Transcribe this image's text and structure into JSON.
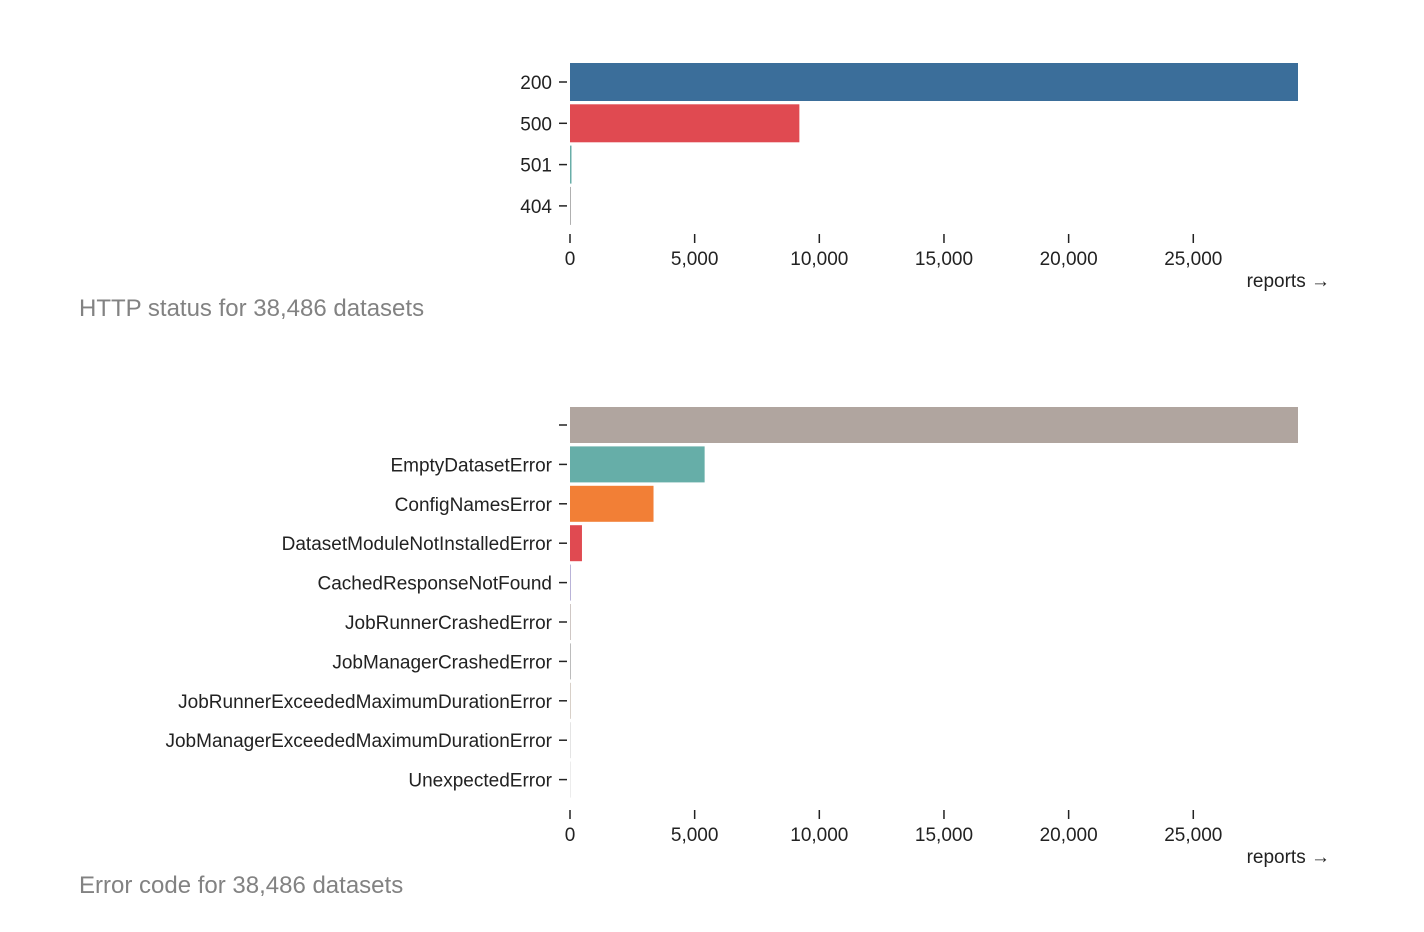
{
  "chart_data": [
    {
      "type": "bar",
      "orientation": "horizontal",
      "caption": "HTTP status for 38,486 datasets",
      "xlabel": "reports →",
      "ylabel": "",
      "xlim": [
        0,
        29200
      ],
      "xticks": [
        0,
        5000,
        10000,
        15000,
        20000,
        25000
      ],
      "xtick_labels": [
        "0",
        "5,000",
        "10,000",
        "15,000",
        "20,000",
        "25,000"
      ],
      "grid": false,
      "categories": [
        "200",
        "500",
        "501",
        "404"
      ],
      "values": [
        29200,
        9200,
        60,
        15
      ],
      "colors": [
        "#3b6e9a",
        "#e04a51",
        "#69aea8",
        "#b0b0b0"
      ]
    },
    {
      "type": "bar",
      "orientation": "horizontal",
      "caption": "Error code for 38,486 datasets",
      "xlabel": "reports →",
      "ylabel": "",
      "xlim": [
        0,
        29200
      ],
      "xticks": [
        0,
        5000,
        10000,
        15000,
        20000,
        25000
      ],
      "xtick_labels": [
        "0",
        "5,000",
        "10,000",
        "15,000",
        "20,000",
        "25,000"
      ],
      "grid": false,
      "categories": [
        "",
        "EmptyDatasetError",
        "ConfigNamesError",
        "DatasetModuleNotInstalledError",
        "CachedResponseNotFound",
        "JobRunnerCrashedError",
        "JobManagerCrashedError",
        "JobRunnerExceededMaximumDurationError",
        "JobManagerExceededMaximumDurationError",
        "UnexpectedError"
      ],
      "values": [
        29200,
        5400,
        3350,
        480,
        30,
        30,
        30,
        15,
        10,
        10
      ],
      "colors": [
        "#b0a59f",
        "#66aea8",
        "#f27f36",
        "#e04a51",
        "#b9b3d8",
        "#cfc7c4",
        "#bcbcbc",
        "#d8d0c8",
        "#e4e4e4",
        "#ececec"
      ]
    }
  ]
}
